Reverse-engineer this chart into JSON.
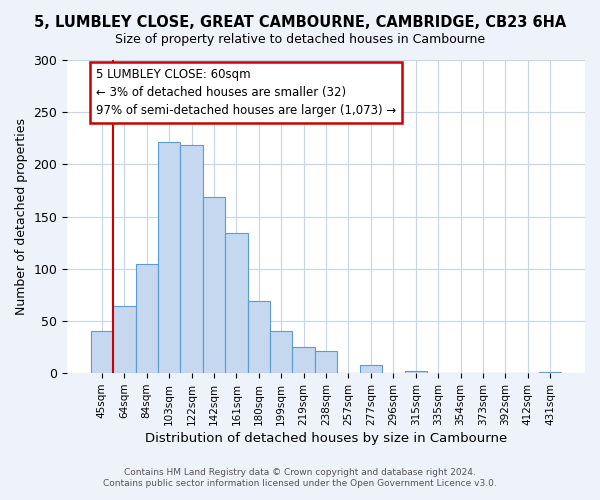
{
  "title": "5, LUMBLEY CLOSE, GREAT CAMBOURNE, CAMBRIDGE, CB23 6HA",
  "subtitle": "Size of property relative to detached houses in Cambourne",
  "xlabel": "Distribution of detached houses by size in Cambourne",
  "ylabel": "Number of detached properties",
  "bar_labels": [
    "45sqm",
    "64sqm",
    "84sqm",
    "103sqm",
    "122sqm",
    "142sqm",
    "161sqm",
    "180sqm",
    "199sqm",
    "219sqm",
    "238sqm",
    "257sqm",
    "277sqm",
    "296sqm",
    "315sqm",
    "335sqm",
    "354sqm",
    "373sqm",
    "392sqm",
    "412sqm",
    "431sqm"
  ],
  "bar_values": [
    40,
    64,
    105,
    221,
    219,
    169,
    134,
    69,
    40,
    25,
    21,
    0,
    8,
    0,
    2,
    0,
    0,
    0,
    0,
    0,
    1
  ],
  "bar_color": "#c5d8f0",
  "bar_edge_color": "#5b9bd5",
  "annotation_line_color": "#cc0000",
  "annotation_box_color": "#cc0000",
  "annotation_text": "5 LUMBLEY CLOSE: 60sqm\n← 3% of detached houses are smaller (32)\n97% of semi-detached houses are larger (1,073) →",
  "ylim": [
    0,
    300
  ],
  "yticks": [
    0,
    50,
    100,
    150,
    200,
    250,
    300
  ],
  "footer_line1": "Contains HM Land Registry data © Crown copyright and database right 2024.",
  "footer_line2": "Contains public sector information licensed under the Open Government Licence v3.0.",
  "bg_color": "#eef2fa",
  "plot_bg_color": "#ffffff",
  "grid_color": "#c8d4e8"
}
